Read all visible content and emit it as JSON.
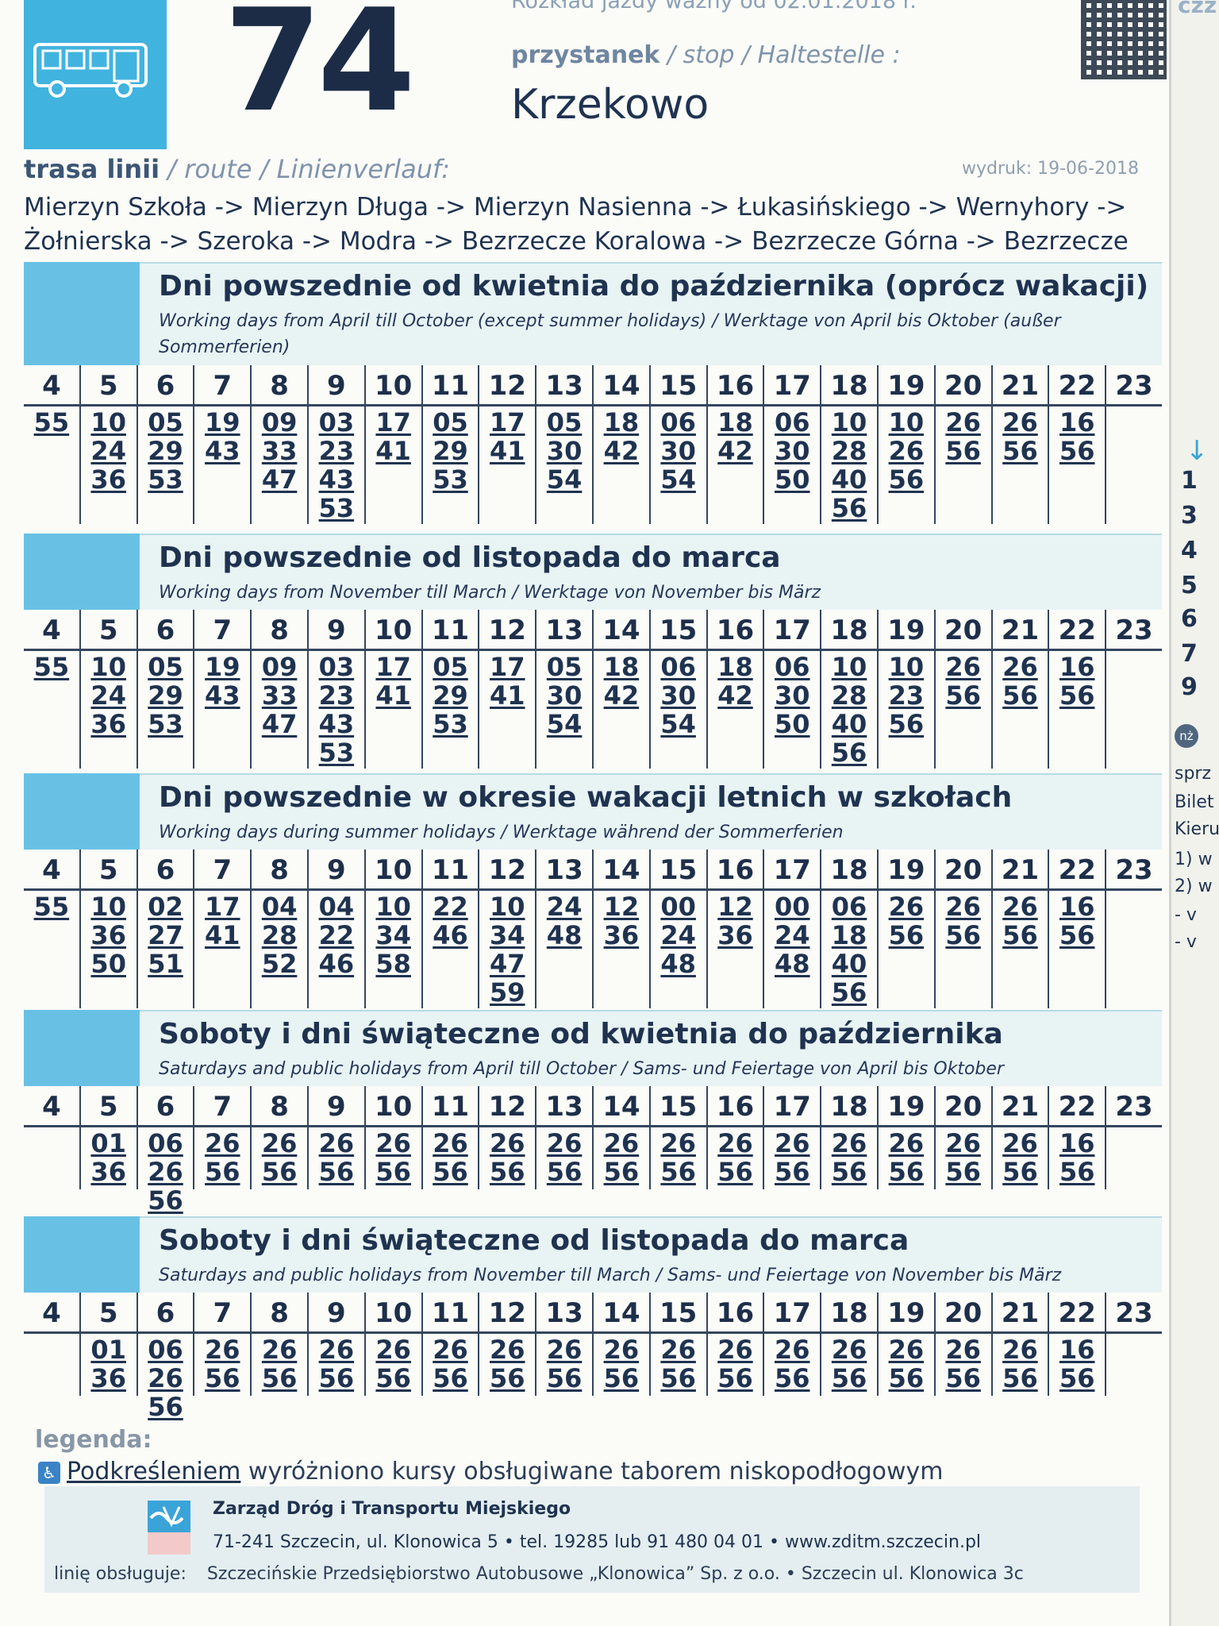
{
  "header": {
    "line_number": "74",
    "valid_from": "Rozkład jazdy ważny od 02.01.2018 r.",
    "stop_label_pl": "przystanek",
    "stop_label_rest": " / stop / Haltestelle :",
    "stop_name": "Krzekowo",
    "cut_text": "czz",
    "route_label_pl": "trasa linii",
    "route_label_rest": " / route / Linienverlauf:",
    "printed": "wydruk: 19-06-2018",
    "route_line1": "Mierzyn Szkoła -> Mierzyn Długa -> Mierzyn Nasienna -> Łukasińskiego -> Wernyhory ->",
    "route_line2": "Żołnierska -> Szeroka -> Modra -> Bezrzecze Koralowa -> Bezrzecze Górna -> Bezrzecze"
  },
  "hours": [
    "4",
    "5",
    "6",
    "7",
    "8",
    "9",
    "10",
    "11",
    "12",
    "13",
    "14",
    "15",
    "16",
    "17",
    "18",
    "19",
    "20",
    "21",
    "22",
    "23"
  ],
  "sections": [
    {
      "title": "Dni powszednie od kwietnia do października (oprócz wakacji)",
      "subtitle": "Working days from April till October (except summer holidays) / Werktage von April bis Oktober (außer Sommerferien)",
      "minutes": [
        [
          "55"
        ],
        [
          "10",
          "24",
          "36"
        ],
        [
          "05",
          "29",
          "53"
        ],
        [
          "19",
          "43"
        ],
        [
          "09",
          "33",
          "47"
        ],
        [
          "03",
          "23",
          "43",
          "53"
        ],
        [
          "17",
          "41"
        ],
        [
          "05",
          "29",
          "53"
        ],
        [
          "17",
          "41"
        ],
        [
          "05",
          "30",
          "54"
        ],
        [
          "18",
          "42"
        ],
        [
          "06",
          "30",
          "54"
        ],
        [
          "18",
          "42"
        ],
        [
          "06",
          "30",
          "50"
        ],
        [
          "10",
          "28",
          "40",
          "56"
        ],
        [
          "10",
          "26",
          "56"
        ],
        [
          "26",
          "56"
        ],
        [
          "26",
          "56"
        ],
        [
          "16",
          "56"
        ],
        []
      ]
    },
    {
      "title": "Dni powszednie od listopada do marca",
      "subtitle": "Working days from November till March / Werktage von November bis März",
      "minutes": [
        [
          "55"
        ],
        [
          "10",
          "24",
          "36"
        ],
        [
          "05",
          "29",
          "53"
        ],
        [
          "19",
          "43"
        ],
        [
          "09",
          "33",
          "47"
        ],
        [
          "03",
          "23",
          "43",
          "53"
        ],
        [
          "17",
          "41"
        ],
        [
          "05",
          "29",
          "53"
        ],
        [
          "17",
          "41"
        ],
        [
          "05",
          "30",
          "54"
        ],
        [
          "18",
          "42"
        ],
        [
          "06",
          "30",
          "54"
        ],
        [
          "18",
          "42"
        ],
        [
          "06",
          "30",
          "50"
        ],
        [
          "10",
          "28",
          "40",
          "56"
        ],
        [
          "10",
          "23",
          "56"
        ],
        [
          "26",
          "56"
        ],
        [
          "26",
          "56"
        ],
        [
          "16",
          "56"
        ],
        []
      ]
    },
    {
      "title": "Dni powszednie w okresie wakacji letnich w szkołach",
      "subtitle": "Working days during summer holidays / Werktage während der Sommerferien",
      "minutes": [
        [
          "55"
        ],
        [
          "10",
          "36",
          "50"
        ],
        [
          "02",
          "27",
          "51"
        ],
        [
          "17",
          "41"
        ],
        [
          "04",
          "28",
          "52"
        ],
        [
          "04",
          "22",
          "46"
        ],
        [
          "10",
          "34",
          "58"
        ],
        [
          "22",
          "46"
        ],
        [
          "10",
          "34",
          "47",
          "59"
        ],
        [
          "24",
          "48"
        ],
        [
          "12",
          "36"
        ],
        [
          "00",
          "24",
          "48"
        ],
        [
          "12",
          "36"
        ],
        [
          "00",
          "24",
          "48"
        ],
        [
          "06",
          "18",
          "40",
          "56"
        ],
        [
          "26",
          "56"
        ],
        [
          "26",
          "56"
        ],
        [
          "26",
          "56"
        ],
        [
          "16",
          "56"
        ],
        []
      ]
    },
    {
      "title": "Soboty i dni świąteczne od kwietnia do października",
      "subtitle": "Saturdays and public holidays from April till October / Sams- und Feiertage von April bis Oktober",
      "minutes": [
        [],
        [
          "01",
          "36"
        ],
        [
          "06",
          "26",
          "56"
        ],
        [
          "26",
          "56"
        ],
        [
          "26",
          "56"
        ],
        [
          "26",
          "56"
        ],
        [
          "26",
          "56"
        ],
        [
          "26",
          "56"
        ],
        [
          "26",
          "56"
        ],
        [
          "26",
          "56"
        ],
        [
          "26",
          "56"
        ],
        [
          "26",
          "56"
        ],
        [
          "26",
          "56"
        ],
        [
          "26",
          "56"
        ],
        [
          "26",
          "56"
        ],
        [
          "26",
          "56"
        ],
        [
          "26",
          "56"
        ],
        [
          "26",
          "56"
        ],
        [
          "16",
          "56"
        ],
        []
      ]
    },
    {
      "title": "Soboty i dni świąteczne od listopada do marca",
      "subtitle": "Saturdays and public holidays from November till March / Sams- und Feiertage von November bis März",
      "minutes": [
        [],
        [
          "01",
          "36"
        ],
        [
          "06",
          "26",
          "56"
        ],
        [
          "26",
          "56"
        ],
        [
          "26",
          "56"
        ],
        [
          "26",
          "56"
        ],
        [
          "26",
          "56"
        ],
        [
          "26",
          "56"
        ],
        [
          "26",
          "56"
        ],
        [
          "26",
          "56"
        ],
        [
          "26",
          "56"
        ],
        [
          "26",
          "56"
        ],
        [
          "26",
          "56"
        ],
        [
          "26",
          "56"
        ],
        [
          "26",
          "56"
        ],
        [
          "26",
          "56"
        ],
        [
          "26",
          "56"
        ],
        [
          "26",
          "56"
        ],
        [
          "16",
          "56"
        ],
        []
      ]
    }
  ],
  "right_column": {
    "arrow": "↓",
    "numbers": [
      "1",
      "3",
      "4",
      "5",
      "6",
      "7",
      "9"
    ],
    "nz": "nż",
    "texts": [
      "sprz",
      "Bilet",
      "Kieru",
      "1) w",
      "2) w",
      "- v",
      "- v"
    ]
  },
  "legend": {
    "title": "legenda:",
    "wheelchair_icon": "wheelchair-icon",
    "underline_word": "Podkreśleniem",
    "rest": " wyróżniono kursy obsługiwane taborem niskopodłogowym"
  },
  "footer": {
    "org": "Zarząd Dróg i Transportu Miejskiego",
    "address": "71-241 Szczecin, ul. Klonowica 5 • tel. 19285 lub 91 480 04 01 • www.zditm.szczecin.pl",
    "operated_label": "linię obsługuje:",
    "operator": "Szczecińskie Przedsiębiorstwo Autobusowe „Klonowica” Sp. z o.o. • Szczecin ul. Klonowica 3c"
  },
  "colors": {
    "accent": "#41b3df",
    "ink": "#1f3350",
    "band": "#e8f3f4"
  }
}
